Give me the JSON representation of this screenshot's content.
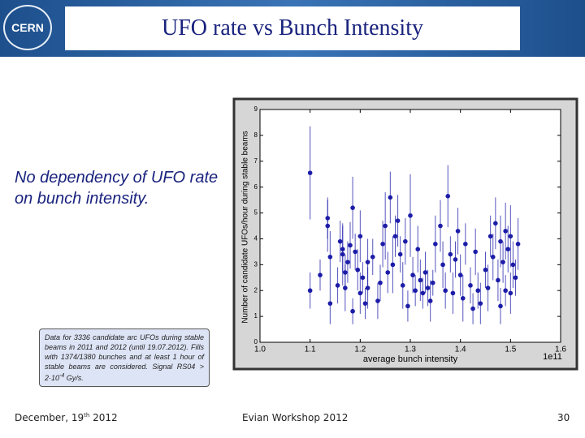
{
  "header": {
    "logo": "CERN",
    "title": "UFO rate vs Bunch Intensity"
  },
  "lead": "No dependency of UFO rate on bunch intensity.",
  "note": {
    "text": "Data for 3336 candidate arc UFOs during stable beams in 2011 and 2012 (until 19.07.2012). Fills with 1374/1380 bunches and at least 1 hour of stable beams are considered. Signal RS04 > 2·10",
    "exponent": "-4",
    "unit": " Gy/s."
  },
  "footer": {
    "date": "December, 19",
    "date_suffix": "th",
    "date_year": " 2012",
    "event": "Evian Workshop 2012",
    "page": "30"
  },
  "chart_data": {
    "type": "scatter",
    "xlabel": "average bunch intensity",
    "ylabel": "Number of candidate UFOs/hour during stable beams",
    "x_offset_label": "1e11",
    "color": "#1c1ca8",
    "xlim": [
      1.0,
      1.6
    ],
    "xticks": [
      {
        "value": 1,
        "label": "1.0"
      },
      1.1,
      1.2,
      1.3,
      1.4,
      1.5,
      1.6
    ],
    "ylim": [
      0,
      9
    ],
    "yticks": [
      0,
      1,
      2,
      3,
      4,
      5,
      6,
      7,
      8,
      9
    ],
    "x": [
      1.1,
      1.1,
      1.12,
      1.135,
      1.135,
      1.14,
      1.14,
      1.155,
      1.16,
      1.165,
      1.165,
      1.17,
      1.17,
      1.175,
      1.18,
      1.185,
      1.185,
      1.19,
      1.195,
      1.2,
      1.2,
      1.205,
      1.21,
      1.215,
      1.215,
      1.225,
      1.235,
      1.24,
      1.245,
      1.25,
      1.255,
      1.26,
      1.265,
      1.27,
      1.275,
      1.28,
      1.285,
      1.29,
      1.295,
      1.3,
      1.305,
      1.31,
      1.315,
      1.32,
      1.325,
      1.33,
      1.335,
      1.34,
      1.345,
      1.35,
      1.36,
      1.365,
      1.37,
      1.375,
      1.38,
      1.385,
      1.39,
      1.395,
      1.4,
      1.405,
      1.41,
      1.42,
      1.425,
      1.43,
      1.435,
      1.44,
      1.45,
      1.455,
      1.46,
      1.465,
      1.47,
      1.475,
      1.48,
      1.48,
      1.485,
      1.49,
      1.49,
      1.495,
      1.5,
      1.5,
      1.505,
      1.51,
      1.515
    ],
    "values": [
      6.55,
      2.0,
      2.6,
      4.8,
      4.5,
      3.3,
      1.5,
      2.2,
      3.9,
      3.6,
      3.4,
      2.7,
      2.1,
      3.1,
      3.75,
      5.2,
      1.2,
      3.5,
      2.8,
      1.9,
      4.1,
      2.5,
      1.5,
      3.1,
      2.1,
      3.3,
      1.6,
      2.3,
      3.8,
      4.5,
      2.7,
      5.6,
      3.0,
      4.1,
      4.7,
      3.4,
      2.2,
      3.9,
      1.4,
      4.9,
      2.6,
      2.0,
      3.6,
      2.4,
      1.9,
      2.7,
      2.1,
      1.6,
      2.3,
      3.8,
      4.5,
      3.0,
      2.0,
      5.65,
      3.4,
      1.9,
      3.2,
      4.3,
      2.6,
      1.7,
      3.8,
      2.2,
      1.3,
      3.5,
      2.0,
      1.5,
      2.8,
      2.1,
      4.1,
      3.3,
      4.6,
      2.4,
      3.9,
      1.4,
      3.1,
      4.3,
      2.0,
      3.6,
      4.1,
      1.9,
      3.0,
      2.5,
      3.8
    ],
    "errors": [
      1.8,
      0.7,
      0.6,
      0.8,
      1.0,
      1.0,
      0.8,
      0.7,
      0.8,
      0.9,
      1.2,
      0.7,
      0.9,
      0.8,
      0.9,
      1.2,
      0.5,
      0.7,
      0.8,
      0.8,
      1.0,
      0.6,
      0.6,
      0.9,
      0.8,
      0.7,
      0.7,
      0.7,
      0.9,
      1.3,
      0.8,
      1.0,
      1.1,
      0.8,
      1.0,
      0.7,
      0.9,
      0.9,
      0.6,
      1.6,
      0.7,
      0.6,
      0.9,
      0.8,
      0.6,
      0.8,
      0.7,
      0.8,
      0.5,
      1.1,
      1.0,
      0.9,
      0.7,
      1.2,
      0.7,
      0.8,
      0.7,
      0.9,
      0.8,
      0.9,
      0.8,
      0.7,
      0.6,
      0.9,
      0.7,
      0.8,
      0.7,
      0.9,
      0.8,
      0.9,
      1.0,
      0.8,
      1.0,
      0.7,
      0.8,
      1.1,
      0.6,
      0.9,
      1.2,
      0.8,
      0.9,
      0.7,
      1.0
    ]
  }
}
